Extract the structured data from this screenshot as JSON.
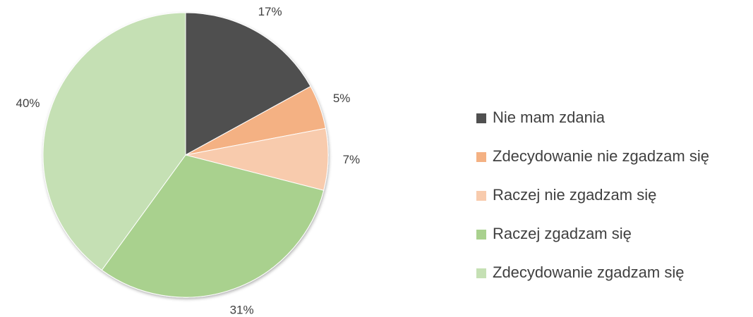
{
  "chart_data": {
    "type": "pie",
    "categories": [
      "Nie mam zdania",
      "Zdecydowanie nie zgadzam się",
      "Raczej nie zgadzam się",
      "Raczej zgadzam się",
      "Zdecydowanie zgadzam się"
    ],
    "values": [
      17,
      5,
      7,
      31,
      40
    ],
    "value_labels": [
      "17%",
      "5%",
      "7%",
      "31%",
      "40%"
    ],
    "colors": [
      "#505050",
      "#f4b183",
      "#f8cbad",
      "#a9d18e",
      "#c5e0b4"
    ],
    "legend": "right"
  }
}
